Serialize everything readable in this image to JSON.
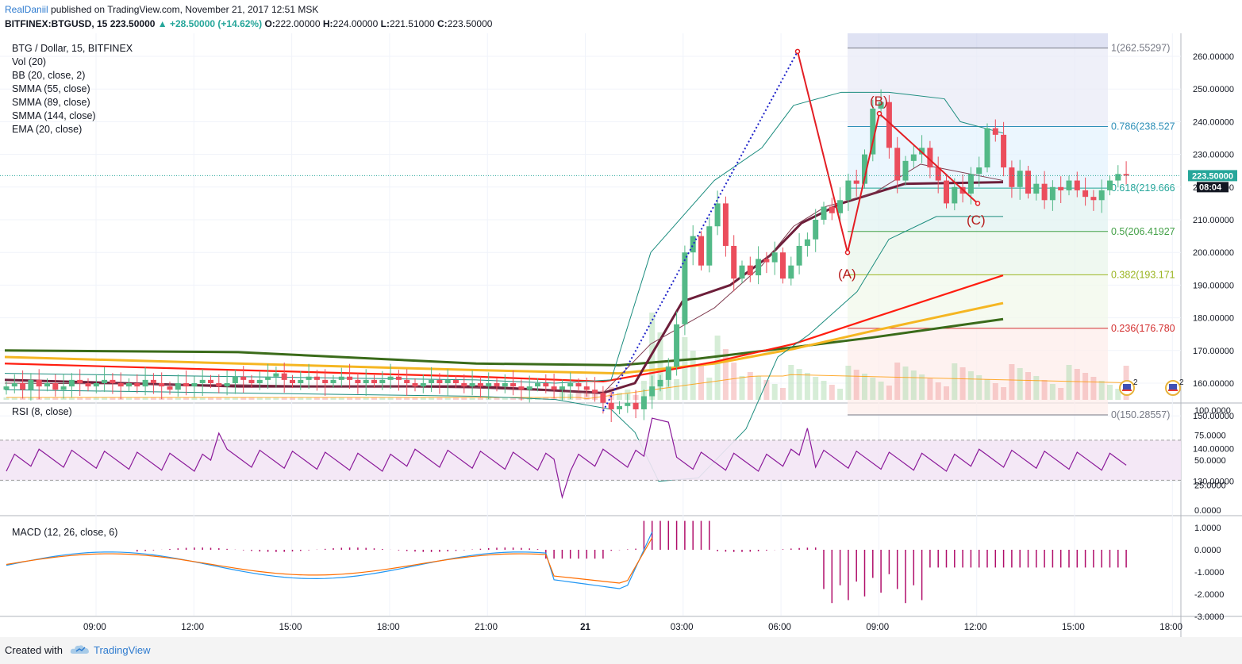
{
  "header": {
    "author": "RealDaniil",
    "published": "published on TradingView.com, November 21, 2017 12:51 MSK",
    "symbol": "BITFINEX:BTGUSD, 15",
    "last": "223.50000",
    "change": "▲ +28.50000 (+14.62%)",
    "ohlc_o_label": "O:",
    "ohlc_o": "222.00000",
    "ohlc_h_label": "H:",
    "ohlc_h": "224.00000",
    "ohlc_l_label": "L:",
    "ohlc_l": "221.51000",
    "ohlc_c_label": "C:",
    "ohlc_c": "223.50000"
  },
  "legend": [
    "BTG / Dollar, 15, BITFINEX",
    "Vol (20)",
    "BB (20, close, 2)",
    "SMMA (55, close)",
    "SMMA (89, close)",
    "SMMA (144, close)",
    "EMA (20, close)"
  ],
  "colors": {
    "up": "#26a69a",
    "down": "#ef5350",
    "bull_candle": "#53b987",
    "bear_candle": "#eb4d5c",
    "smma55": "#6d1e3a",
    "smma89": "#ff1d0f",
    "smma144": "#f5b622",
    "ema20": "#3a6b1a",
    "bb": "#1b8c7e",
    "rsi": "#8b1a9a",
    "macd": "#2196f3",
    "signal": "#ff6d00",
    "hist": "#b00e6a",
    "fib_line": "#9e9e9e"
  },
  "fib": {
    "levels": [
      {
        "label": "1(262.55297)",
        "value": 262.55297,
        "color": "#787b86"
      },
      {
        "label": "0.786(238.527",
        "value": 238.527,
        "color": "#2d8fb8"
      },
      {
        "label": "0.618(219.666",
        "value": 219.666,
        "color": "#26a69a"
      },
      {
        "label": "0.5(206.41927",
        "value": 206.41927,
        "color": "#43a047"
      },
      {
        "label": "0.382(193.171",
        "value": 193.171,
        "color": "#9bb521"
      },
      {
        "label": "0.236(176.780",
        "value": 176.78,
        "color": "#d32f2f"
      },
      {
        "label": "0(150.28557)",
        "value": 150.28557,
        "color": "#787b86"
      }
    ]
  },
  "abc_labels": {
    "a": "(A)",
    "b": "(B)",
    "c": "(C)"
  },
  "price_axis": {
    "ticks": [
      "260.00000",
      "250.00000",
      "240.00000",
      "230.00000",
      "220.00000",
      "210.00000",
      "200.00000",
      "190.00000",
      "180.00000",
      "170.00000",
      "160.00000",
      "150.00000",
      "140.00000",
      "130.00000"
    ],
    "last_label": "223.50000",
    "countdown": "08:04"
  },
  "rsi_panel": {
    "title": "RSI (8, close)",
    "ticks": [
      "100.0000",
      "75.0000",
      "50.0000",
      "25.0000",
      "0.0000"
    ]
  },
  "macd_panel": {
    "title": "MACD (12, 26, close, 6)",
    "ticks": [
      "1.0000",
      "0.0000",
      "-1.0000",
      "-2.0000",
      "-3.0000"
    ]
  },
  "time_axis": [
    "09:00",
    "12:00",
    "15:00",
    "18:00",
    "21:00",
    "21",
    "03:00",
    "06:00",
    "09:00",
    "12:00",
    "15:00",
    "18:00"
  ],
  "badges": [
    "2",
    "2"
  ],
  "footer": {
    "created": "Created with",
    "brand": "TradingView"
  },
  "chart_data": {
    "type": "candlestick",
    "symbol": "BITFINEX:BTGUSD",
    "interval": "15",
    "ylim": [
      124,
      268
    ],
    "last_price": 223.5,
    "candles_pre_crash_close": [
      159,
      160,
      158,
      161,
      159,
      160,
      158,
      159,
      161,
      160,
      159,
      160,
      161,
      160,
      159,
      160,
      159,
      161,
      160,
      159,
      158,
      160,
      159,
      160,
      161,
      160,
      159,
      160,
      162,
      161,
      160,
      161,
      162,
      163,
      161,
      160,
      161,
      162,
      161,
      160,
      161,
      162,
      161,
      160,
      161,
      160,
      161,
      162,
      161,
      160,
      159,
      160,
      161,
      160,
      161,
      160,
      159,
      160,
      159,
      160,
      159,
      160,
      159,
      158,
      159,
      160,
      159,
      158,
      159,
      160,
      159,
      158,
      157
    ],
    "candles_rally_close": [
      154,
      152,
      153,
      154,
      152,
      156,
      159,
      161,
      165,
      178,
      200,
      205,
      196,
      208,
      215,
      202,
      192,
      196,
      193,
      198,
      197,
      200,
      192,
      196,
      202,
      204,
      210,
      214,
      212,
      216,
      222,
      221,
      230,
      244,
      246,
      232,
      222,
      228,
      230,
      232,
      226,
      222,
      215,
      220,
      218,
      224,
      226,
      238,
      236,
      226,
      220,
      225,
      218,
      221,
      216,
      220,
      219,
      222,
      219,
      217,
      216,
      219,
      222,
      224,
      223.5
    ],
    "rsi_range": [
      0,
      100
    ],
    "rsi_bands": [
      30,
      70
    ],
    "macd_range": [
      -3,
      1.3
    ]
  }
}
